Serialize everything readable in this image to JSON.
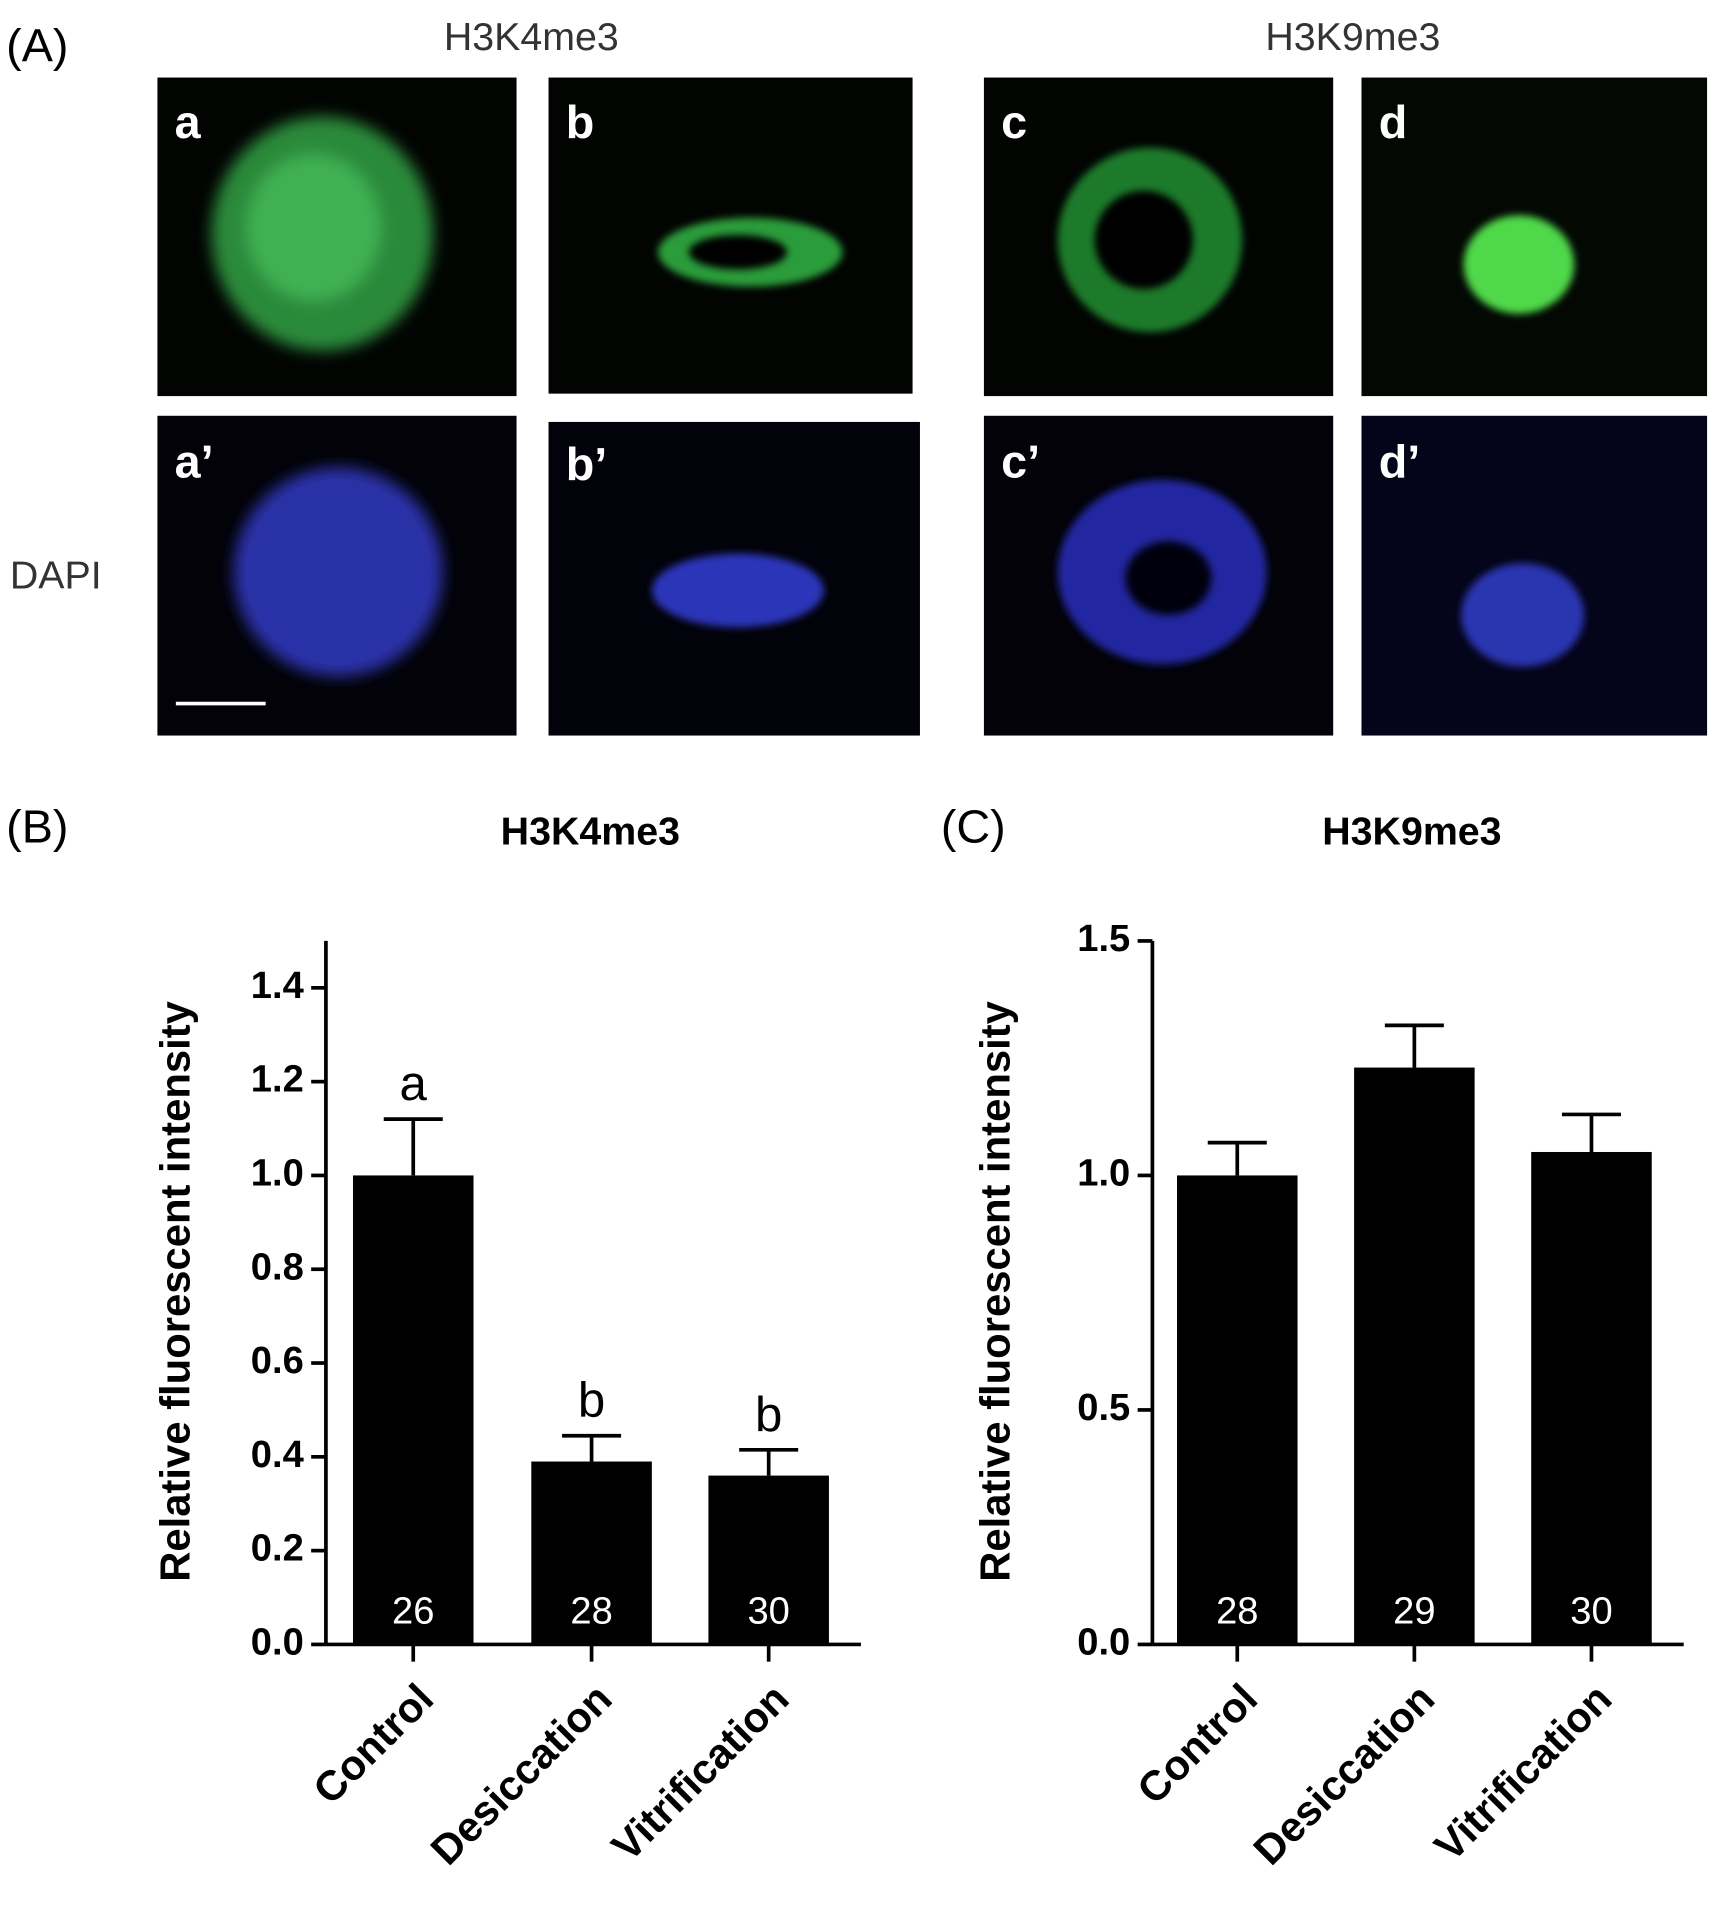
{
  "panel_a": {
    "label": "(A)",
    "group_titles": [
      "H3K4me3",
      "H3K9me3"
    ],
    "row_label": "DAPI",
    "image_labels": [
      "a",
      "b",
      "c",
      "d",
      "a’",
      "b’",
      "c’",
      "d’"
    ]
  },
  "chart_data": [
    {
      "type": "bar",
      "panel_label": "(B)",
      "title": "H3K4me3",
      "y_label": "Relative fluorescent intensity",
      "categories": [
        "Control",
        "Desiccation",
        "Vitrification"
      ],
      "values": [
        1.0,
        0.39,
        0.36
      ],
      "errors": [
        0.12,
        0.055,
        0.055
      ],
      "annotations": [
        "a",
        "b",
        "b"
      ],
      "n_labels": [
        "26",
        "28",
        "30"
      ],
      "color": "#000000",
      "ylim": [
        0,
        1.5
      ],
      "yticks": [
        {
          "value": 0,
          "label": "0.0"
        },
        0.2,
        0.4,
        0.6,
        0.8,
        {
          "value": 1,
          "label": "1.0"
        },
        1.2,
        1.4
      ]
    },
    {
      "type": "bar",
      "panel_label": "(C)",
      "title": "H3K9me3",
      "y_label": "Relative fluorescent intensity",
      "categories": [
        "Control",
        "Desiccation",
        "Vitrification"
      ],
      "values": [
        1.0,
        1.23,
        1.05
      ],
      "errors": [
        0.07,
        0.09,
        0.08
      ],
      "n_labels": [
        "28",
        "29",
        "30"
      ],
      "color": "#000000",
      "ylim": [
        0,
        1.5
      ],
      "yticks": [
        {
          "value": 0,
          "label": "0.0"
        },
        0.5,
        {
          "value": 1,
          "label": "1.0"
        },
        1.5
      ]
    }
  ]
}
